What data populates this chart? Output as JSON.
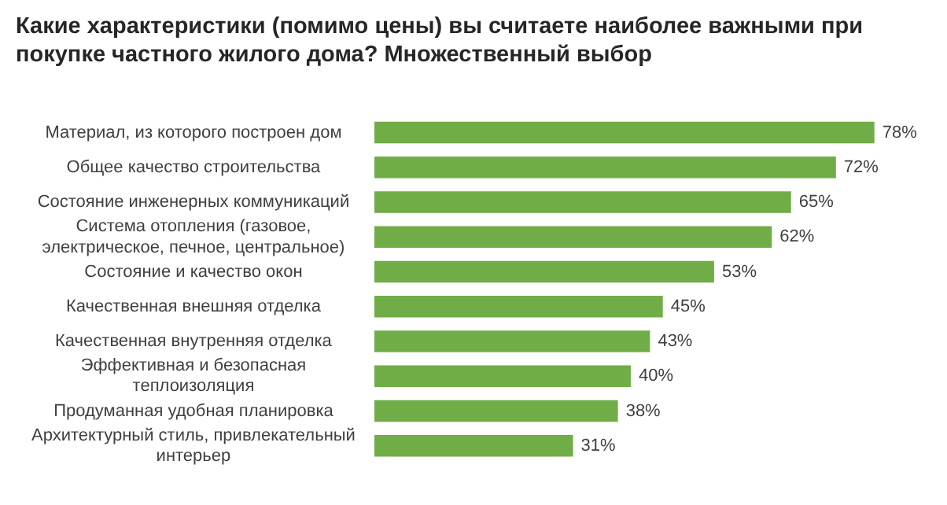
{
  "chart_data": {
    "type": "bar",
    "orientation": "horizontal",
    "title": "Какие характеристики (помимо цены) вы считаете наиболее важными при покупке частного жилого дома? Множественный выбор",
    "categories": [
      "Материал, из которого построен дом",
      "Общее качество строительства",
      "Состояние инженерных коммуникаций",
      "Система отопления (газовое, электрическое, печное, центральное)",
      "Состояние и качество окон",
      "Качественная внешняя отделка",
      "Качественная внутренняя отделка",
      "Эффективная и безопасная теплоизоляция",
      "Продуманная удобная планировка",
      "Архитектурный стиль, привлекательный интерьер"
    ],
    "values": [
      78,
      72,
      65,
      62,
      53,
      45,
      43,
      40,
      38,
      31
    ],
    "value_labels": [
      "78%",
      "72%",
      "65%",
      "62%",
      "53%",
      "45%",
      "43%",
      "40%",
      "38%",
      "31%"
    ],
    "color": "#70ad47",
    "grid": false,
    "legend": false
  }
}
